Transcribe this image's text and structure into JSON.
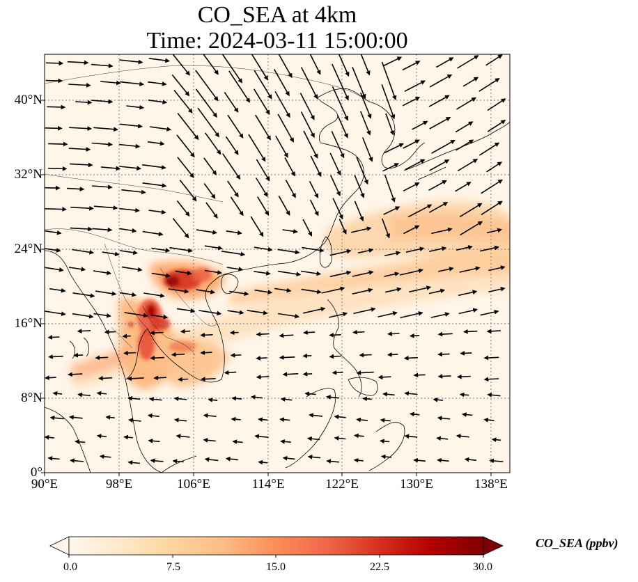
{
  "title": {
    "line1": "CO_SEA at 4km",
    "line2": "Time: 2024-03-11 15:00:00"
  },
  "map": {
    "extent": {
      "lon_min": 90,
      "lon_max": 140,
      "lat_min": 0,
      "lat_max": 45
    },
    "gridlines": true,
    "x_ticks": [
      "90°E",
      "98°E",
      "106°E",
      "114°E",
      "122°E",
      "130°E",
      "138°E"
    ],
    "y_ticks": [
      "0°",
      "8°N",
      "16°N",
      "24°N",
      "32°N",
      "40°N"
    ],
    "colormap": "OrRd",
    "wind_vectors": true
  },
  "colorbar": {
    "label": "CO_SEA (ppbv)",
    "ticks": [
      "0.0",
      "7.5",
      "15.0",
      "22.5",
      "30.0"
    ],
    "min": 0,
    "max": 30,
    "extend": "both",
    "colors": [
      "#fff7ec",
      "#fee8c8",
      "#fdd49e",
      "#fdbb84",
      "#fc8d59",
      "#ef6548",
      "#d7301f",
      "#b30000",
      "#7f0000"
    ]
  }
}
